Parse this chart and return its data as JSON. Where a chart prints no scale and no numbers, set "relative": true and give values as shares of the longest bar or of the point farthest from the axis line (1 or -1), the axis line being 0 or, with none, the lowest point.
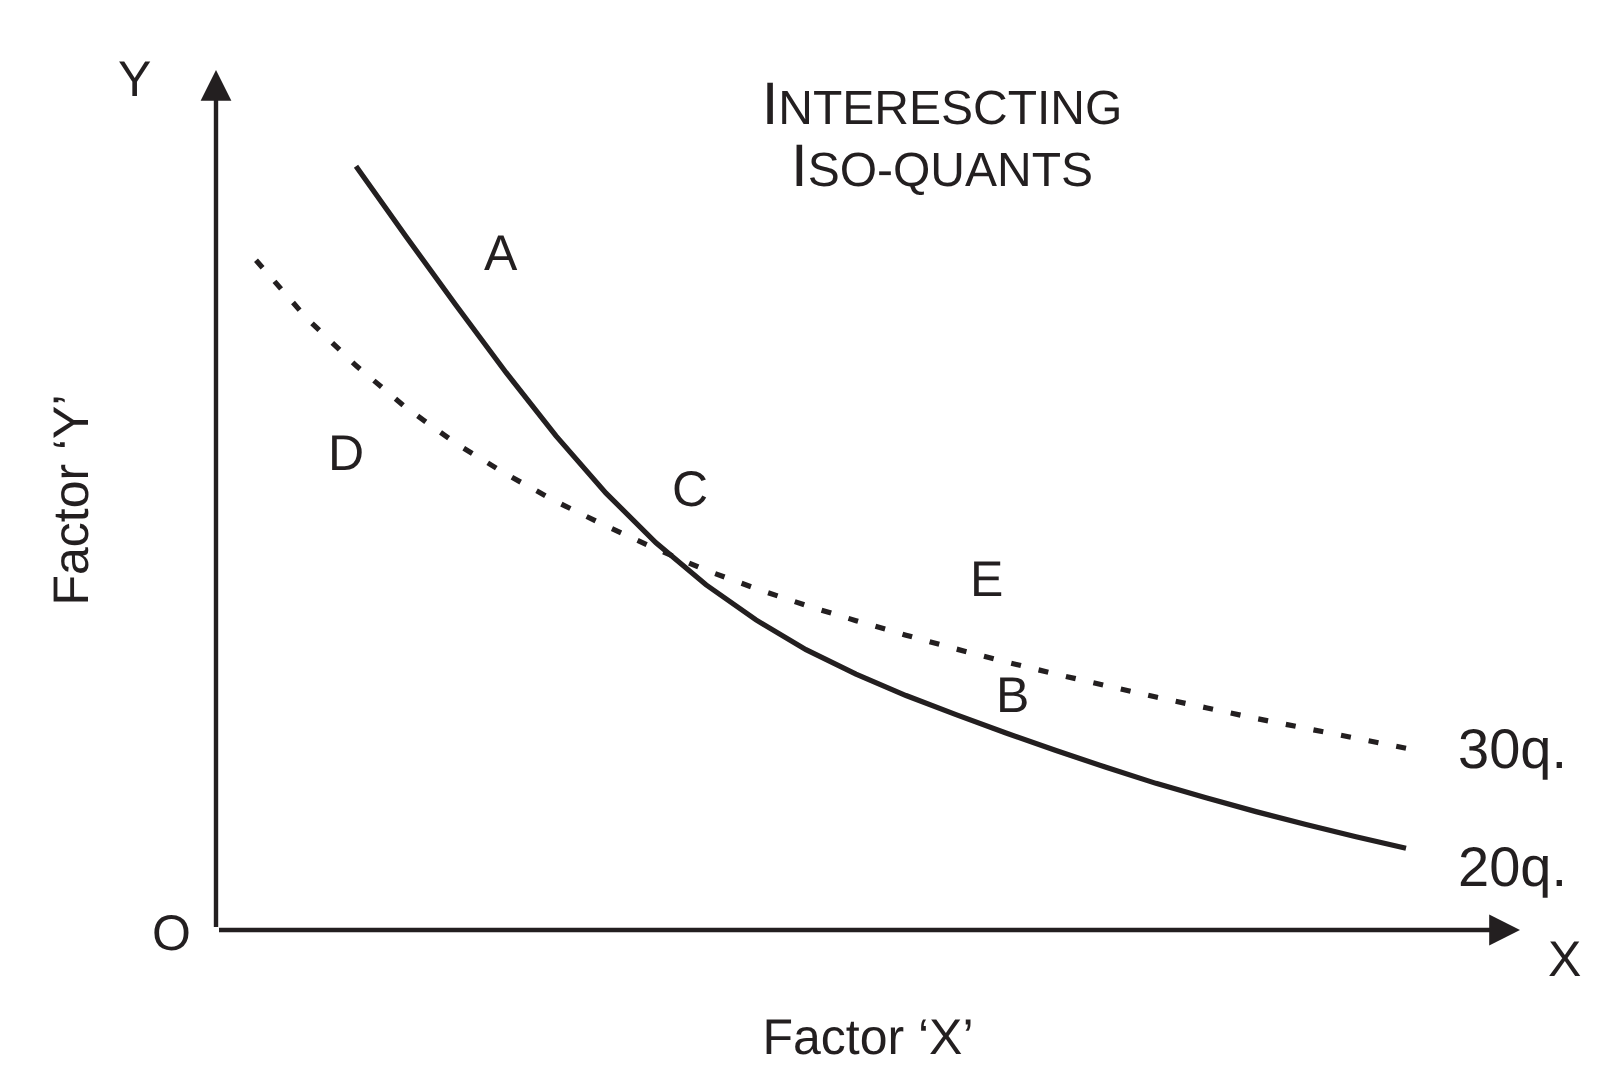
{
  "chart_data": {
    "type": "line",
    "relative": true,
    "title": "INTERESCTING\nISO-QUANTS",
    "xlabel": "Factor ‘X’",
    "ylabel": "Factor ‘Y’",
    "categories": [
      null,
      null,
      null,
      null,
      null,
      null,
      null,
      null,
      null,
      null,
      null,
      null,
      null,
      null,
      null,
      null,
      null,
      null,
      null,
      null,
      null,
      null,
      null,
      null
    ],
    "series": [
      {
        "name": "30q.",
        "color": "#231f20",
        "line_style": "dotted",
        "values": [
          0.877,
          0.802,
          0.739,
          0.684,
          0.637,
          0.597,
          0.561,
          0.529,
          0.499,
          0.471,
          0.447,
          0.425,
          0.405,
          0.386,
          0.368,
          0.351,
          0.335,
          0.32,
          0.305,
          0.291,
          0.277,
          0.264,
          0.251,
          0.238
        ]
      },
      {
        "name": "20q.",
        "color": "#231f20",
        "line_style": "solid",
        "values": [
          null,
          null,
          1,
          0.908,
          0.818,
          0.73,
          0.647,
          0.572,
          0.507,
          0.452,
          0.406,
          0.367,
          0.335,
          0.307,
          0.282,
          0.258,
          0.235,
          0.213,
          0.192,
          0.173,
          0.155,
          0.138,
          0.122,
          0.107
        ]
      }
    ],
    "annotations": [
      "Y",
      "A",
      "D",
      "C",
      "E",
      "B",
      "O",
      "X"
    ],
    "legend": false
  }
}
